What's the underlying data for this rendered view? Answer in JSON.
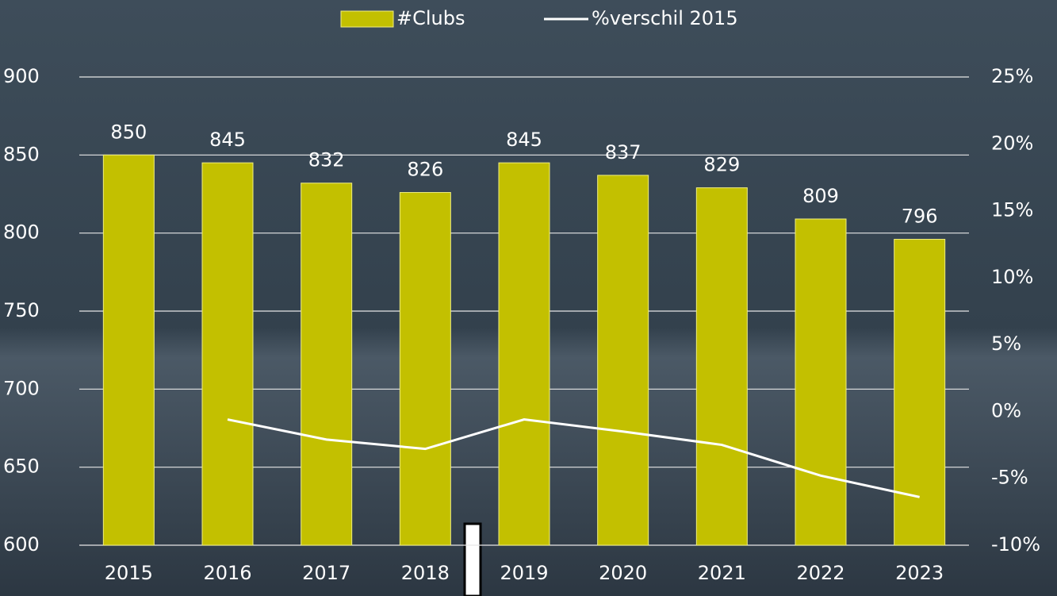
{
  "chart_data": {
    "type": "bar-line",
    "categories": [
      "2015",
      "2016",
      "2017",
      "2018",
      "2019",
      "2020",
      "2021",
      "2022",
      "2023"
    ],
    "series": [
      {
        "name": "#Clubs",
        "type": "bar",
        "color": "#c3c000",
        "values": [
          850,
          845,
          832,
          826,
          845,
          837,
          829,
          809,
          796
        ]
      },
      {
        "name": "%verschil 2015",
        "type": "line",
        "axis": "y2",
        "color": "#ffffff",
        "values": [
          null,
          -0.6,
          -2.1,
          -2.8,
          -0.6,
          -1.5,
          -2.5,
          -4.8,
          -6.4
        ]
      }
    ],
    "ylim": [
      600,
      900
    ],
    "yticks": [
      600,
      650,
      700,
      750,
      800,
      850,
      900
    ],
    "y2lim": [
      -10,
      25
    ],
    "y2ticks": [
      {
        "value": -10,
        "label": "-10%"
      },
      {
        "value": -5,
        "label": "-5%"
      },
      {
        "value": 0,
        "label": "0%"
      },
      {
        "value": 5,
        "label": "5%"
      },
      {
        "value": 10,
        "label": "10%"
      },
      {
        "value": 15,
        "label": "15%"
      },
      {
        "value": 20,
        "label": "20%"
      },
      {
        "value": 25,
        "label": "25%"
      }
    ],
    "grid": true,
    "legend": "top"
  }
}
